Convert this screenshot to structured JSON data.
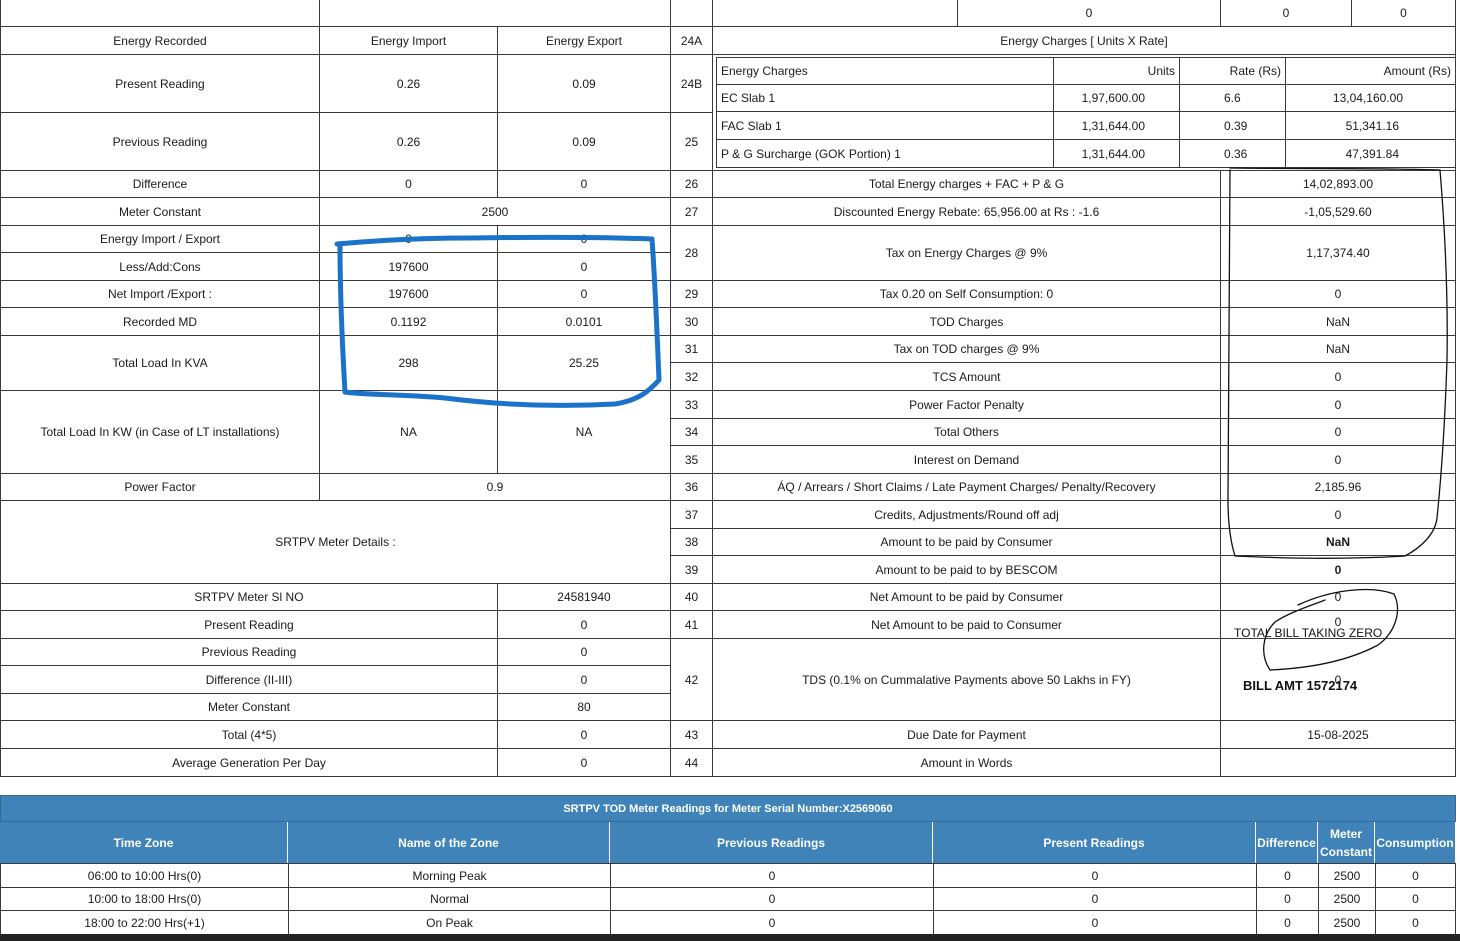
{
  "top_row": {
    "v1": "0",
    "v2": "0",
    "v3": "0"
  },
  "left": {
    "header": {
      "label": "Energy Recorded",
      "import": "Energy Import",
      "export": "Energy Export"
    },
    "present": {
      "label": "Present Reading",
      "import": "0.26",
      "export": "0.09"
    },
    "previous": {
      "label": "Previous Reading",
      "import": "0.26",
      "export": "0.09"
    },
    "difference": {
      "label": "Difference",
      "import": "0",
      "export": "0"
    },
    "meter_constant": {
      "label": "Meter Constant",
      "value": "2500"
    },
    "energy_ie": {
      "label": "Energy Import / Export",
      "import": "0",
      "export": "0"
    },
    "less_add": {
      "label": "Less/Add:Cons",
      "import": "197600",
      "export": "0"
    },
    "net_ie": {
      "label": "Net Import /Export :",
      "import": "197600",
      "export": "0"
    },
    "recorded_md": {
      "label": "Recorded MD",
      "import": "0.1192",
      "export": "0.0101"
    },
    "total_kva": {
      "label": "Total Load In KVA",
      "import": "298",
      "export": "25.25"
    },
    "total_kw": {
      "label": "Total Load In KW (in Case of LT installations)",
      "import": "NA",
      "export": "NA"
    },
    "power_factor": {
      "label": "Power Factor",
      "value": "0.9"
    },
    "srtpv_details": "SRTPV Meter Details :",
    "srtpv_rows": [
      {
        "label": "SRTPV Meter Sl NO",
        "value": "24581940"
      },
      {
        "label": "Present Reading",
        "value": "0"
      },
      {
        "label": "Previous Reading",
        "value": "0"
      },
      {
        "label": "Difference (II-III)",
        "value": "0"
      },
      {
        "label": "Meter Constant",
        "value": "80"
      },
      {
        "label": "Total (4*5)",
        "value": "0"
      },
      {
        "label": "Average Generation Per Day",
        "value": "0"
      }
    ]
  },
  "right": {
    "charges_header": {
      "num": "24A",
      "label": "Energy Charges [ Units X Rate]"
    },
    "num_24b": "24B",
    "num_25": "25",
    "ec_table": {
      "headers": {
        "name": "Energy Charges",
        "units": "Units",
        "rate": "Rate (Rs)",
        "amount": "Amount (Rs)"
      },
      "rows": [
        {
          "name": "EC Slab 1",
          "units": "1,97,600.00",
          "rate": "6.6",
          "amount": "13,04,160.00"
        },
        {
          "name": "FAC Slab 1",
          "units": "1,31,644.00",
          "rate": "0.39",
          "amount": "51,341.16"
        },
        {
          "name": "P & G Surcharge (GOK Portion) 1",
          "units": "1,31,644.00",
          "rate": "0.36",
          "amount": "47,391.84"
        }
      ]
    },
    "items": [
      {
        "num": "26",
        "label": "Total Energy charges + FAC + P & G",
        "value": "14,02,893.00"
      },
      {
        "num": "27",
        "label": "Discounted Energy Rebate: 65,956.00 at Rs : -1.6",
        "value": "-1,05,529.60"
      },
      {
        "num": "28",
        "label": "Tax on Energy Charges @ 9%",
        "value": "1,17,374.40"
      },
      {
        "num": "29",
        "label": "Tax 0.20 on Self Consumption: 0",
        "value": "0"
      },
      {
        "num": "30",
        "label": "TOD Charges",
        "value": "NaN"
      },
      {
        "num": "31",
        "label": "Tax on TOD charges @ 9%",
        "value": "NaN"
      },
      {
        "num": "32",
        "label": "TCS Amount",
        "value": "0"
      },
      {
        "num": "33",
        "label": "Power Factor Penalty",
        "value": "0"
      },
      {
        "num": "34",
        "label": "Total Others",
        "value": "0"
      },
      {
        "num": "35",
        "label": "Interest on Demand",
        "value": "0"
      },
      {
        "num": "36",
        "label": "ÁQ / Arrears / Short Claims / Late Payment Charges/ Penalty/Recovery",
        "value": "2,185.96"
      },
      {
        "num": "37",
        "label": "Credits, Adjustments/Round off adj",
        "value": "0"
      },
      {
        "num": "38",
        "label": "Amount to be paid by Consumer",
        "value": "NaN"
      },
      {
        "num": "39",
        "label": "Amount to be paid to by BESCOM",
        "value": "0"
      },
      {
        "num": "40",
        "label": "Net Amount to be paid by Consumer",
        "value": "0"
      },
      {
        "num": "41",
        "label": "Net Amount to be paid to Consumer",
        "value": "0"
      },
      {
        "num": "42",
        "label": "TDS (0.1% on Cummalative Payments above 50 Lakhs in FY)",
        "value": "0"
      },
      {
        "num": "43",
        "label": "Due Date for Payment",
        "value": "15-08-2025"
      },
      {
        "num": "44",
        "label": "Amount in Words",
        "value": ""
      }
    ]
  },
  "annotations": {
    "note1": "TOTAL BILL TAKING ZERO",
    "note2": "BILL AMT 1572174",
    "ink_blue": "#1a73c8",
    "ink_black": "#111111"
  },
  "tod": {
    "title": "SRTPV TOD Meter Readings for Meter Serial Number:X2569060",
    "headers": {
      "time_zone": "Time Zone",
      "zone_name": "Name of the Zone",
      "previous": "Previous Readings",
      "present": "Present Readings",
      "difference": "Difference",
      "meter_constant_1": "Meter",
      "meter_constant_2": "Constant",
      "consumption": "Consumption"
    },
    "rows": [
      {
        "time": "06:00  to 10:00 Hrs(0)",
        "zone": "Morning Peak",
        "previous": "0",
        "present": "0",
        "difference": "0",
        "constant": "2500",
        "consumption": "0"
      },
      {
        "time": "10:00  to 18:00 Hrs(0)",
        "zone": "Normal",
        "previous": "0",
        "present": "0",
        "difference": "0",
        "constant": "2500",
        "consumption": "0"
      },
      {
        "time": "18:00  to 22:00 Hrs(+1)",
        "zone": "On Peak",
        "previous": "0",
        "present": "0",
        "difference": "0",
        "constant": "2500",
        "consumption": "0"
      }
    ],
    "header_color": "#3f83b8"
  }
}
